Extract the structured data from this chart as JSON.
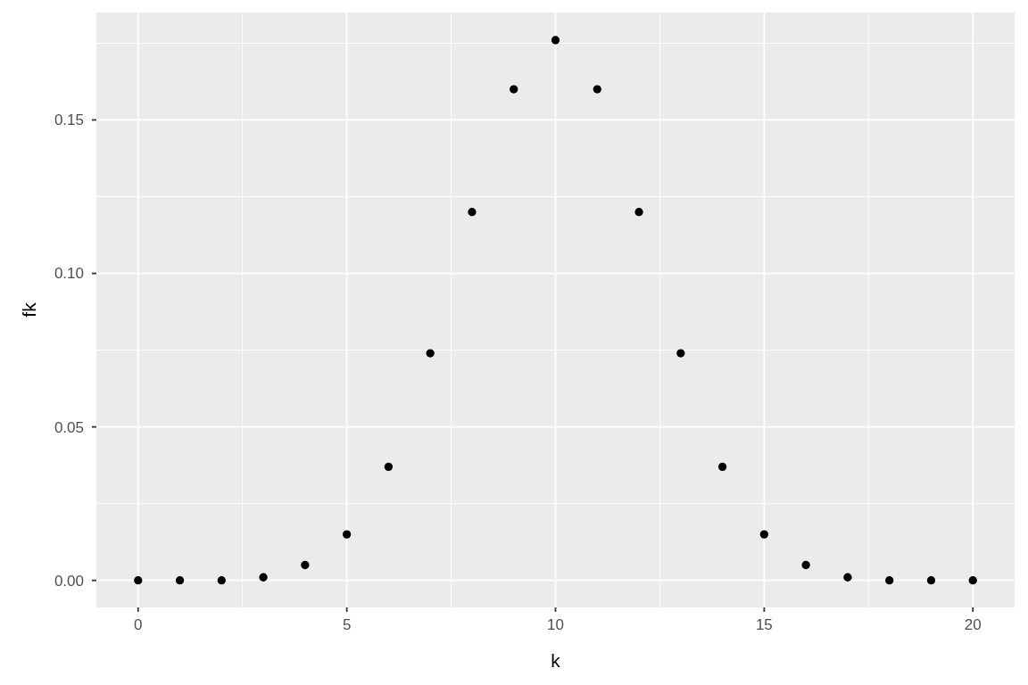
{
  "chart_data": {
    "type": "scatter",
    "x": [
      0,
      1,
      2,
      3,
      4,
      5,
      6,
      7,
      8,
      9,
      10,
      11,
      12,
      13,
      14,
      15,
      16,
      17,
      18,
      19,
      20
    ],
    "series": [
      {
        "color": "#000000",
        "values": [
          0,
          0,
          0,
          0.001,
          0.005,
          0.015,
          0.037,
          0.074,
          0.12,
          0.16,
          0.176,
          0.16,
          0.12,
          0.074,
          0.037,
          0.015,
          0.005,
          0.001,
          0,
          0,
          0
        ]
      }
    ],
    "xlabel": "k",
    "ylabel": "fk",
    "xlim": [
      -1,
      21
    ],
    "ylim": [
      -0.0088,
      0.185
    ],
    "xticks": [
      0,
      5,
      10,
      15,
      20
    ],
    "yticks": [
      {
        "value": 0,
        "label": "0.00"
      },
      {
        "value": 0.05,
        "label": "0.05"
      },
      {
        "value": 0.1,
        "label": "0.10"
      },
      {
        "value": 0.15,
        "label": "0.15"
      }
    ],
    "grid": true,
    "marker": "circle"
  }
}
